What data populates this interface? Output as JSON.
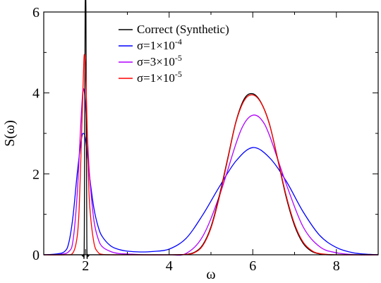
{
  "chart_data": {
    "type": "line",
    "xlabel": "ω",
    "ylabel": "S(ω)",
    "xlim": [
      1,
      9
    ],
    "ylim": [
      0,
      6
    ],
    "xticks": [
      2,
      4,
      6,
      8
    ],
    "yticks": [
      0,
      2,
      4,
      6
    ],
    "grid": false,
    "legend_position": "top-center",
    "series": [
      {
        "name": "Correct (Synthetic)",
        "color": "#000000",
        "x": [
          1.0,
          1.2,
          1.4,
          1.6,
          1.8,
          1.9,
          1.95,
          1.97,
          1.99,
          2.0,
          2.01,
          2.03,
          2.05,
          2.1,
          2.2,
          2.4,
          2.6,
          3.0,
          3.5,
          4.0,
          4.2,
          4.4,
          4.6,
          4.8,
          5.0,
          5.2,
          5.4,
          5.6,
          5.8,
          6.0,
          6.2,
          6.4,
          6.6,
          6.8,
          7.0,
          7.2,
          7.4,
          7.6,
          7.8,
          8.0,
          8.5,
          9.0
        ],
        "y": [
          0.0,
          0.0,
          0.0,
          0.0,
          0.0,
          0.0,
          0.0,
          0.5,
          6.0,
          6.0,
          6.0,
          0.5,
          0.0,
          0.0,
          0.0,
          0.0,
          0.0,
          0.0,
          0.0,
          0.0,
          0.0,
          0.01,
          0.06,
          0.24,
          0.69,
          1.46,
          2.38,
          3.3,
          3.86,
          3.98,
          3.76,
          3.23,
          2.34,
          1.42,
          0.72,
          0.29,
          0.09,
          0.02,
          0.0,
          0.0,
          0.0,
          0.0
        ]
      },
      {
        "name": "σ=1×10⁻⁴",
        "color": "#0000ff",
        "x": [
          1.0,
          1.3,
          1.5,
          1.6,
          1.7,
          1.8,
          1.9,
          1.95,
          2.0,
          2.05,
          2.1,
          2.2,
          2.3,
          2.4,
          2.6,
          2.8,
          3.0,
          3.3,
          3.6,
          4.0,
          4.4,
          4.8,
          5.2,
          5.6,
          6.0,
          6.4,
          6.8,
          7.2,
          7.6,
          8.0,
          8.4,
          8.8,
          9.0
        ],
        "y": [
          0.0,
          0.02,
          0.08,
          0.3,
          0.95,
          2.0,
          2.85,
          3.0,
          2.85,
          2.4,
          1.9,
          1.15,
          0.7,
          0.45,
          0.22,
          0.13,
          0.09,
          0.07,
          0.08,
          0.14,
          0.4,
          0.98,
          1.68,
          2.32,
          2.65,
          2.4,
          1.82,
          1.07,
          0.48,
          0.18,
          0.05,
          0.01,
          0.0
        ]
      },
      {
        "name": "σ=3×10⁻⁵",
        "color": "#b000ff",
        "x": [
          1.0,
          1.4,
          1.6,
          1.7,
          1.8,
          1.9,
          1.95,
          2.0,
          2.05,
          2.1,
          2.2,
          2.3,
          2.4,
          2.6,
          2.8,
          3.0,
          3.4,
          4.0,
          4.4,
          4.8,
          5.2,
          5.6,
          5.8,
          6.0,
          6.2,
          6.4,
          6.8,
          7.2,
          7.6,
          8.0,
          8.5,
          9.0
        ],
        "y": [
          0.0,
          0.01,
          0.08,
          0.35,
          1.5,
          3.5,
          4.1,
          3.7,
          2.8,
          1.9,
          0.85,
          0.4,
          0.2,
          0.08,
          0.03,
          0.02,
          0.0,
          0.0,
          0.03,
          0.45,
          1.45,
          2.75,
          3.25,
          3.45,
          3.35,
          2.95,
          1.75,
          0.7,
          0.2,
          0.05,
          0.0,
          0.0
        ]
      },
      {
        "name": "σ=1×10⁻⁵",
        "color": "#ff0000",
        "x": [
          1.0,
          1.5,
          1.7,
          1.8,
          1.85,
          1.9,
          1.95,
          1.97,
          2.0,
          2.03,
          2.06,
          2.1,
          2.2,
          2.3,
          2.4,
          2.6,
          3.0,
          4.0,
          4.4,
          4.6,
          4.8,
          5.0,
          5.2,
          5.4,
          5.6,
          5.8,
          6.0,
          6.2,
          6.4,
          6.6,
          6.8,
          7.0,
          7.2,
          7.4,
          7.6,
          8.0,
          9.0
        ],
        "y": [
          0.0,
          0.0,
          0.05,
          0.45,
          1.2,
          2.8,
          4.5,
          4.95,
          4.6,
          3.5,
          2.3,
          1.2,
          0.3,
          0.06,
          0.01,
          0.0,
          0.0,
          0.0,
          0.01,
          0.05,
          0.22,
          0.66,
          1.42,
          2.35,
          3.28,
          3.82,
          3.95,
          3.75,
          3.22,
          2.36,
          1.46,
          0.76,
          0.32,
          0.11,
          0.03,
          0.0,
          0.0
        ]
      }
    ],
    "legend_entries": [
      {
        "label": "Correct (Synthetic)",
        "sup": ""
      },
      {
        "label": "σ=1×10",
        "sup": "-4"
      },
      {
        "label": "σ=3×10",
        "sup": "-5"
      },
      {
        "label": "σ=1×10",
        "sup": "-5"
      }
    ]
  }
}
